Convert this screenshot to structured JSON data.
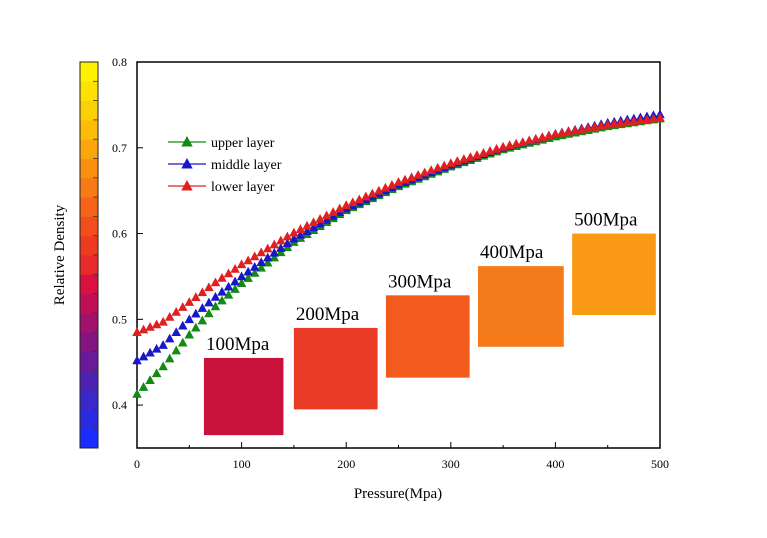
{
  "chart_data": {
    "type": "scatter",
    "title": "",
    "xlabel": "Pressure(Mpa)",
    "ylabel": "Relative Density",
    "xlim": [
      0,
      500
    ],
    "ylim": [
      0.35,
      0.8
    ],
    "x_ticks": [
      "0",
      "100",
      "200",
      "300",
      "400",
      "500"
    ],
    "colorbar": {
      "ticks": [
        "0.4",
        "0.5",
        "0.6",
        "0.7",
        "0.8"
      ],
      "range": [
        0.35,
        0.8
      ],
      "colors": [
        "#1a2dff",
        "#2a2ae0",
        "#3b28c8",
        "#4e22b0",
        "#6a1a99",
        "#831482",
        "#a0126c",
        "#c00f55",
        "#d91040",
        "#e82a2a",
        "#ef3a22",
        "#f24e1c",
        "#f56418",
        "#f77a14",
        "#f99010",
        "#fba60c",
        "#fcbc08",
        "#fdd004",
        "#fee102",
        "#fff100"
      ]
    },
    "legend": {
      "placement": "top-left"
    },
    "series": [
      {
        "name": "upper layer",
        "color": "#138a13",
        "marker": "triangle",
        "x": [
          0,
          25,
          50,
          75,
          100,
          150,
          200,
          250,
          300,
          350,
          400,
          450,
          500
        ],
        "y": [
          0.413,
          0.445,
          0.482,
          0.515,
          0.542,
          0.59,
          0.627,
          0.655,
          0.678,
          0.698,
          0.713,
          0.725,
          0.734
        ]
      },
      {
        "name": "middle layer",
        "color": "#1818c8",
        "marker": "triangle",
        "x": [
          0,
          25,
          50,
          75,
          100,
          150,
          200,
          250,
          300,
          350,
          400,
          450,
          500
        ],
        "y": [
          0.452,
          0.47,
          0.5,
          0.526,
          0.55,
          0.594,
          0.629,
          0.657,
          0.68,
          0.7,
          0.716,
          0.729,
          0.739
        ]
      },
      {
        "name": "lower layer",
        "color": "#e02020",
        "marker": "triangle",
        "x": [
          0,
          25,
          50,
          75,
          100,
          150,
          200,
          250,
          300,
          350,
          400,
          450,
          500
        ],
        "y": [
          0.485,
          0.497,
          0.52,
          0.543,
          0.564,
          0.601,
          0.633,
          0.66,
          0.682,
          0.701,
          0.716,
          0.727,
          0.735
        ]
      }
    ],
    "annotations": [
      {
        "label": "100Mpa",
        "x": [
          64,
          140
        ],
        "y": [
          0.365,
          0.455
        ],
        "color": "#c8123c"
      },
      {
        "label": "200Mpa",
        "x": [
          150,
          230
        ],
        "y": [
          0.395,
          0.49
        ],
        "color": "#e83a24"
      },
      {
        "label": "300Mpa",
        "x": [
          238,
          318
        ],
        "y": [
          0.432,
          0.528
        ],
        "color": "#f35a1e"
      },
      {
        "label": "400Mpa",
        "x": [
          326,
          408
        ],
        "y": [
          0.468,
          0.562
        ],
        "color": "#f57a1a"
      },
      {
        "label": "500Mpa",
        "x": [
          416,
          496
        ],
        "y": [
          0.505,
          0.6
        ],
        "color": "#fa9a14"
      }
    ]
  }
}
